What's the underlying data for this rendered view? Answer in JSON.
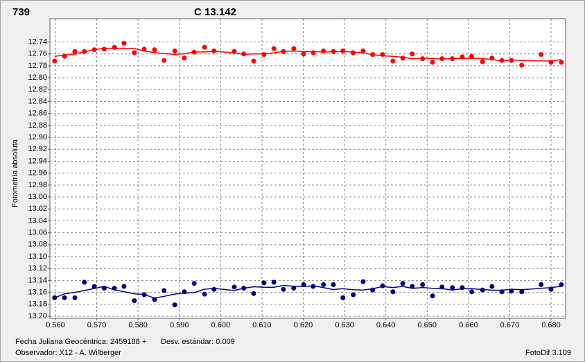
{
  "chart_data": {
    "type": "scatter",
    "ylabel": "Fotometría absoluta",
    "footer": {
      "date": "Fecha Juliana Geocéntrica: 2459188 +",
      "stdev": "Desv. estándar: 0.009",
      "observer": "Observador: X12 - A. Wilberger",
      "software": "FotoDif 3.109"
    },
    "x": [
      0.5598,
      0.5622,
      0.5647,
      0.567,
      0.5694,
      0.5718,
      0.5743,
      0.5766,
      0.5791,
      0.5815,
      0.584,
      0.5863,
      0.5889,
      0.5912,
      0.5936,
      0.5961,
      0.5984,
      0.6033,
      0.6056,
      0.608,
      0.6105,
      0.6129,
      0.6152,
      0.6177,
      0.6201,
      0.6224,
      0.6249,
      0.6273,
      0.6296,
      0.6321,
      0.6345,
      0.6368,
      0.6392,
      0.6417,
      0.6441,
      0.6464,
      0.6489,
      0.6513,
      0.6536,
      0.6561,
      0.6585,
      0.6608,
      0.6634,
      0.6657,
      0.6681,
      0.6704,
      0.6729,
      0.6776,
      0.68,
      0.6825
    ],
    "series": [
      {
        "name": "739",
        "color": "#ff0000",
        "values": [
          12.772,
          12.764,
          12.756,
          12.756,
          12.753,
          12.752,
          12.749,
          12.742,
          12.758,
          12.752,
          12.753,
          12.771,
          12.755,
          12.767,
          12.757,
          12.749,
          12.755,
          12.756,
          12.76,
          12.772,
          12.761,
          12.751,
          12.756,
          12.751,
          12.76,
          12.758,
          12.755,
          12.756,
          12.755,
          12.758,
          12.755,
          12.761,
          12.761,
          12.772,
          12.767,
          12.76,
          12.768,
          12.774,
          12.768,
          12.768,
          12.765,
          12.764,
          12.773,
          12.767,
          12.771,
          12.771,
          12.779,
          12.761,
          12.774,
          12.774
        ]
      },
      {
        "name": "C 13.142",
        "color": "#000080",
        "values": [
          13.169,
          13.169,
          13.169,
          13.143,
          13.15,
          13.153,
          13.153,
          13.15,
          13.174,
          13.164,
          13.172,
          13.157,
          13.181,
          13.159,
          13.145,
          13.163,
          13.155,
          13.151,
          13.153,
          13.162,
          13.144,
          13.143,
          13.155,
          13.153,
          13.147,
          13.15,
          13.147,
          13.147,
          13.169,
          13.164,
          13.142,
          13.156,
          13.149,
          13.159,
          13.145,
          13.15,
          13.147,
          13.166,
          13.151,
          13.152,
          13.152,
          13.159,
          13.156,
          13.15,
          13.159,
          13.158,
          13.159,
          13.147,
          13.155,
          13.147
        ]
      }
    ],
    "xlim": [
      0.55866,
      0.68352
    ],
    "xticks": [
      {
        "value": 0.56,
        "label": "0.560"
      },
      {
        "value": 0.57,
        "label": "0.570"
      },
      {
        "value": 0.58,
        "label": "0.580"
      },
      {
        "value": 0.59,
        "label": "0.590"
      },
      {
        "value": 0.6,
        "label": "0.600"
      },
      {
        "value": 0.61,
        "label": "0.610"
      },
      {
        "value": 0.62,
        "label": "0.620"
      },
      {
        "value": 0.63,
        "label": "0.630"
      },
      {
        "value": 0.64,
        "label": "0.640"
      },
      {
        "value": 0.65,
        "label": "0.650"
      },
      {
        "value": 0.66,
        "label": "0.660"
      },
      {
        "value": 0.67,
        "label": "0.670"
      },
      {
        "value": 0.68,
        "label": "0.680"
      }
    ],
    "ylim": [
      12.701,
      13.2035
    ],
    "y_inverted": true,
    "yticks": [
      12.74,
      12.76,
      12.78,
      {
        "value": 12.8,
        "label": "12.80"
      },
      12.82,
      12.84,
      12.86,
      12.88,
      {
        "value": 12.9,
        "label": "12.90"
      },
      12.92,
      12.94,
      12.96,
      12.98,
      {
        "value": 13.0,
        "label": "13.00"
      },
      13.02,
      13.04,
      13.06,
      13.08,
      {
        "value": 13.1,
        "label": "13.10"
      },
      13.12,
      13.14,
      13.16,
      13.18,
      {
        "value": 13.2,
        "label": "13.20"
      }
    ],
    "grid": true
  }
}
